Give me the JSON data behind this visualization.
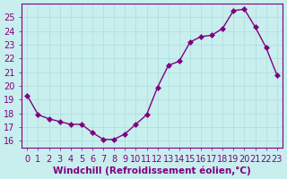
{
  "x": [
    0,
    1,
    2,
    3,
    4,
    5,
    6,
    7,
    8,
    9,
    10,
    11,
    12,
    13,
    14,
    15,
    16,
    17,
    18,
    19,
    20,
    21,
    22,
    23
  ],
  "y": [
    19.3,
    17.9,
    17.6,
    17.4,
    17.2,
    17.2,
    16.6,
    16.1,
    16.1,
    16.5,
    17.2,
    17.9,
    19.9,
    21.5,
    21.8,
    23.2,
    23.6,
    23.7,
    24.2,
    25.5,
    25.6,
    24.3,
    22.8,
    20.8
  ],
  "line_color": "#800080",
  "marker": "D",
  "marker_size": 3,
  "bg_color": "#c8eeee",
  "grid_color": "#aadddd",
  "xlabel": "Windchill (Refroidissement éolien,°C)",
  "ylim": [
    15.5,
    26.0
  ],
  "xlim": [
    -0.5,
    23.5
  ],
  "yticks": [
    16,
    17,
    18,
    19,
    20,
    21,
    22,
    23,
    24,
    25
  ],
  "xticks": [
    0,
    1,
    2,
    3,
    4,
    5,
    6,
    7,
    8,
    9,
    10,
    11,
    12,
    13,
    14,
    15,
    16,
    17,
    18,
    19,
    20,
    21,
    22,
    23
  ],
  "tick_label_color": "#800080",
  "axis_color": "#800080",
  "font_size": 7,
  "xlabel_fontsize": 7.5
}
